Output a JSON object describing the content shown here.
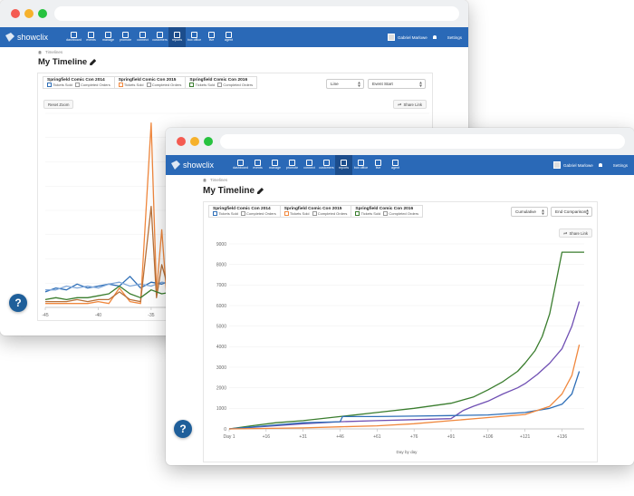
{
  "app": {
    "brand": "showclix",
    "nav": [
      "dashboard",
      "events",
      "manage",
      "promote",
      "connect",
      "customers",
      "reports",
      "box office",
      "live",
      "agent"
    ],
    "active_nav": "reports",
    "user": "Gabriel Marlowe",
    "settings": "Settings"
  },
  "breadcrumb": "Timelines",
  "page_title": "My Timeline",
  "legend": [
    {
      "name": "Springfield Comic Con 2014",
      "items": [
        "Tickets Sold",
        "Completed Orders"
      ],
      "color": "#2f6fb7"
    },
    {
      "name": "Springfield Comic Con 2015",
      "items": [
        "Tickets Sold",
        "Completed Orders"
      ],
      "color": "#f0883e"
    },
    {
      "name": "Springfield Comic Con 2016",
      "items": [
        "Tickets Sold",
        "Completed Orders"
      ],
      "color": "#3a7d2e"
    }
  ],
  "back": {
    "select_chart": "Line",
    "select_mode": "Event Start",
    "reset_zoom": "Reset Zoom",
    "share": "Share Link"
  },
  "front": {
    "select_chart": "Cumulative",
    "select_mode": "End Comparison",
    "share": "Share Link"
  },
  "help_label": "?",
  "chart_data": [
    {
      "type": "line",
      "x_ticks": [
        "-45",
        "-40",
        "-35"
      ],
      "xlim": [
        -45,
        -32
      ],
      "ylim": [
        0,
        100
      ],
      "series": [
        {
          "color": "#2f6fb7",
          "x": [
            -45,
            -44,
            -43,
            -42,
            -41,
            -40,
            -39,
            -38,
            -37,
            -36,
            -35,
            -34,
            -33
          ],
          "values": [
            8,
            10,
            9,
            12,
            10,
            11,
            12,
            11,
            16,
            10,
            13,
            12,
            14
          ]
        },
        {
          "color": "#7fa7d9",
          "x": [
            -45,
            -44,
            -43,
            -42,
            -41,
            -40,
            -39,
            -38,
            -37,
            -36,
            -35,
            -34,
            -33
          ],
          "values": [
            9,
            9,
            11,
            10,
            11,
            10,
            12,
            13,
            11,
            12,
            11,
            13,
            12
          ]
        },
        {
          "color": "#f0883e",
          "x": [
            -45,
            -44,
            -43,
            -42,
            -41,
            -40,
            -39,
            -38,
            -37,
            -36,
            -35,
            -34.5,
            -34,
            -33.5,
            -33
          ],
          "values": [
            2,
            2,
            2,
            2,
            2,
            3,
            2,
            10,
            3,
            2,
            95,
            8,
            40,
            3,
            2
          ]
        },
        {
          "color": "#b7713a",
          "x": [
            -45,
            -44,
            -43,
            -42,
            -41,
            -40,
            -39,
            -38,
            -37,
            -36,
            -35,
            -34.5,
            -34,
            -33
          ],
          "values": [
            3,
            3,
            3,
            4,
            3,
            4,
            4,
            8,
            4,
            3,
            52,
            5,
            22,
            3
          ]
        },
        {
          "color": "#3a7d2e",
          "x": [
            -45,
            -44,
            -43,
            -42,
            -41,
            -40,
            -39,
            -38,
            -37,
            -36,
            -35,
            -34,
            -33
          ],
          "values": [
            4,
            5,
            4,
            5,
            5,
            6,
            7,
            11,
            7,
            5,
            9,
            7,
            8
          ]
        }
      ]
    },
    {
      "type": "line",
      "xlabel": "Day by day",
      "x_ticks": [
        "Day 1",
        "+16",
        "+31",
        "+46",
        "+61",
        "+76",
        "+91",
        "+106",
        "+121",
        "+136"
      ],
      "y_ticks": [
        0,
        1000,
        2000,
        3000,
        4000,
        5000,
        6000,
        7000,
        8000,
        9000
      ],
      "xlim": [
        1,
        145
      ],
      "ylim": [
        0,
        9000
      ],
      "series": [
        {
          "color": "#3a7d2e",
          "x": [
            1,
            10,
            20,
            31,
            46,
            61,
            76,
            91,
            100,
            106,
            112,
            118,
            121,
            125,
            128,
            131,
            134,
            136,
            145
          ],
          "values": [
            0,
            150,
            300,
            400,
            600,
            800,
            1000,
            1250,
            1550,
            1900,
            2300,
            2800,
            3200,
            3800,
            4500,
            5600,
            7400,
            8600,
            8600
          ]
        },
        {
          "color": "#6f4fb3",
          "x": [
            1,
            31,
            46,
            61,
            76,
            91,
            96,
            100,
            106,
            112,
            118,
            121,
            126,
            131,
            136,
            140,
            143
          ],
          "values": [
            0,
            250,
            350,
            400,
            450,
            500,
            900,
            1100,
            1350,
            1700,
            2000,
            2200,
            2650,
            3200,
            3900,
            5000,
            6200
          ]
        },
        {
          "color": "#2f6fb7",
          "x": [
            1,
            31,
            46,
            47,
            61,
            76,
            91,
            106,
            121,
            131,
            136,
            140,
            143
          ],
          "values": [
            0,
            300,
            350,
            600,
            600,
            620,
            650,
            680,
            800,
            1000,
            1200,
            1700,
            2800
          ]
        },
        {
          "color": "#f0883e",
          "x": [
            1,
            31,
            46,
            61,
            76,
            91,
            106,
            121,
            131,
            136,
            140,
            143
          ],
          "values": [
            0,
            50,
            100,
            150,
            250,
            400,
            550,
            700,
            1100,
            1700,
            2600,
            4100
          ]
        }
      ]
    }
  ]
}
